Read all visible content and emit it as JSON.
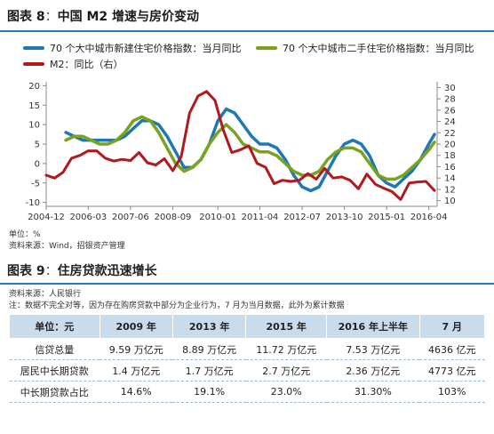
{
  "figure8": {
    "label": "图表 8",
    "separator": "：",
    "title": "中国 M2 增速与房价变动",
    "legend": [
      {
        "name": "70 个大中城市新建住宅价格指数：当月同比",
        "color": "#1f78b4"
      },
      {
        "name": "70 个大中城市二手住宅价格指数：当月同比",
        "color": "#7aa21e"
      },
      {
        "name": "M2：同比（右）",
        "color": "#b0191e"
      }
    ],
    "unit_note": "单位：%",
    "source_note": "资料来源：Wind，招银资产管理"
  },
  "chart_data": {
    "type": "line",
    "x_labels": [
      "2004-12",
      "2006-03",
      "2007-06",
      "2008-09",
      "2010-01",
      "2011-04",
      "2012-07",
      "2013-10",
      "2015-01",
      "2016-04"
    ],
    "y_left": {
      "ticks": [
        20,
        15,
        10,
        5,
        0,
        -5,
        -10
      ],
      "range": [
        -11,
        21
      ]
    },
    "y_right": {
      "ticks": [
        30,
        28,
        26,
        24,
        22,
        20,
        18,
        16,
        14,
        12,
        10
      ],
      "range": [
        9,
        31
      ]
    },
    "series": [
      {
        "name": "70 个大中城市新建住宅价格指数：当月同比",
        "axis": "left",
        "color": "#1f78b4",
        "x": [
          "2005-07",
          "2005-10",
          "2006-01",
          "2006-04",
          "2006-07",
          "2006-10",
          "2007-01",
          "2007-04",
          "2007-07",
          "2007-10",
          "2008-01",
          "2008-04",
          "2008-07",
          "2008-10",
          "2009-01",
          "2009-04",
          "2009-07",
          "2009-10",
          "2010-01",
          "2010-04",
          "2010-07",
          "2010-10",
          "2011-01",
          "2011-04",
          "2011-07",
          "2011-10",
          "2012-01",
          "2012-04",
          "2012-07",
          "2012-10",
          "2013-01",
          "2013-04",
          "2013-07",
          "2013-10",
          "2014-01",
          "2014-04",
          "2014-07",
          "2014-10",
          "2015-01",
          "2015-04",
          "2015-07",
          "2015-10",
          "2016-01",
          "2016-04",
          "2016-06"
        ],
        "values": [
          8,
          7,
          6,
          6,
          6,
          6,
          6,
          7,
          9,
          11,
          11,
          10,
          7,
          3,
          -1,
          -1,
          1,
          5,
          11,
          14,
          13,
          10,
          7,
          5,
          5,
          4,
          1,
          -3,
          -6,
          -7,
          -6,
          -2,
          2,
          5,
          6,
          5,
          2,
          -3,
          -5,
          -6,
          -4,
          -2,
          1,
          5,
          7.5
        ]
      },
      {
        "name": "70 个大中城市二手住宅价格指数：当月同比",
        "axis": "left",
        "color": "#7aa21e",
        "x": [
          "2005-07",
          "2005-10",
          "2006-01",
          "2006-04",
          "2006-07",
          "2006-10",
          "2007-01",
          "2007-04",
          "2007-07",
          "2007-10",
          "2008-01",
          "2008-04",
          "2008-07",
          "2008-10",
          "2009-01",
          "2009-04",
          "2009-07",
          "2009-10",
          "2010-01",
          "2010-04",
          "2010-07",
          "2010-10",
          "2011-01",
          "2011-04",
          "2011-07",
          "2011-10",
          "2012-01",
          "2012-04",
          "2012-07",
          "2012-10",
          "2013-01",
          "2013-04",
          "2013-07",
          "2013-10",
          "2014-01",
          "2014-04",
          "2014-07",
          "2014-10",
          "2015-01",
          "2015-04",
          "2015-07",
          "2015-10",
          "2016-01",
          "2016-04",
          "2016-06"
        ],
        "values": [
          6,
          7,
          7,
          6,
          5,
          5,
          6,
          8,
          11,
          12,
          11,
          8,
          4,
          0,
          -2,
          -1,
          1,
          5,
          8,
          10,
          8,
          5,
          4,
          3,
          3,
          2,
          0,
          -2,
          -3,
          -3,
          -2,
          1,
          3,
          4,
          4,
          3,
          0,
          -3,
          -4,
          -4,
          -3,
          -1,
          1,
          3.5,
          5.5
        ]
      },
      {
        "name": "M2：同比（右）",
        "axis": "right",
        "color": "#b0191e",
        "x": [
          "2004-12",
          "2005-03",
          "2005-06",
          "2005-09",
          "2005-12",
          "2006-03",
          "2006-06",
          "2006-09",
          "2006-12",
          "2007-03",
          "2007-06",
          "2007-09",
          "2007-12",
          "2008-03",
          "2008-06",
          "2008-09",
          "2008-12",
          "2009-03",
          "2009-06",
          "2009-09",
          "2009-12",
          "2010-03",
          "2010-06",
          "2010-09",
          "2010-12",
          "2011-03",
          "2011-06",
          "2011-09",
          "2011-12",
          "2012-03",
          "2012-06",
          "2012-09",
          "2012-12",
          "2013-03",
          "2013-06",
          "2013-09",
          "2013-12",
          "2014-03",
          "2014-06",
          "2014-09",
          "2014-12",
          "2015-03",
          "2015-06",
          "2015-09",
          "2015-12",
          "2016-03",
          "2016-06"
        ],
        "values": [
          14.5,
          14,
          15,
          17.5,
          18,
          18.8,
          18.8,
          17.5,
          17,
          17.3,
          17.1,
          18.5,
          16.7,
          16.3,
          17.4,
          15.3,
          17.8,
          25.5,
          28.5,
          29.3,
          27.7,
          22.5,
          18.5,
          19,
          19.7,
          16.6,
          15.9,
          13,
          13.6,
          13.4,
          13.6,
          14.8,
          13.8,
          15.7,
          14,
          14.2,
          13.6,
          12.1,
          14.7,
          12.9,
          12.2,
          11.6,
          10.2,
          13.1,
          13.3,
          13.4,
          11.8
        ]
      }
    ]
  },
  "figure9": {
    "label": "图表 9",
    "separator": "：",
    "title": "住房贷款迅速增长",
    "source_note": "资料来源：人民银行",
    "footnote": "注：数据不完全对等，因为存在购房贷款中部分为企业行为，7 月为当月数据，此外为累计数据",
    "headers": [
      "单位：元",
      "2009 年",
      "2013 年",
      "2015 年",
      "2016 年上半年",
      "7 月"
    ],
    "rows": [
      [
        "信贷总量",
        "9.59 万亿元",
        "8.89 万亿元",
        "11.72 万亿元",
        "7.53 万亿元",
        "4636 亿元"
      ],
      [
        "居民中长期贷款",
        "1.4 万亿元",
        "1.7 万亿元",
        "2.7 万亿元",
        "2.36 万亿元",
        "4773 亿元"
      ],
      [
        "中长期贷款占比",
        "14.6%",
        "19.1%",
        "23.0%",
        "31.30%",
        "103%"
      ]
    ]
  }
}
